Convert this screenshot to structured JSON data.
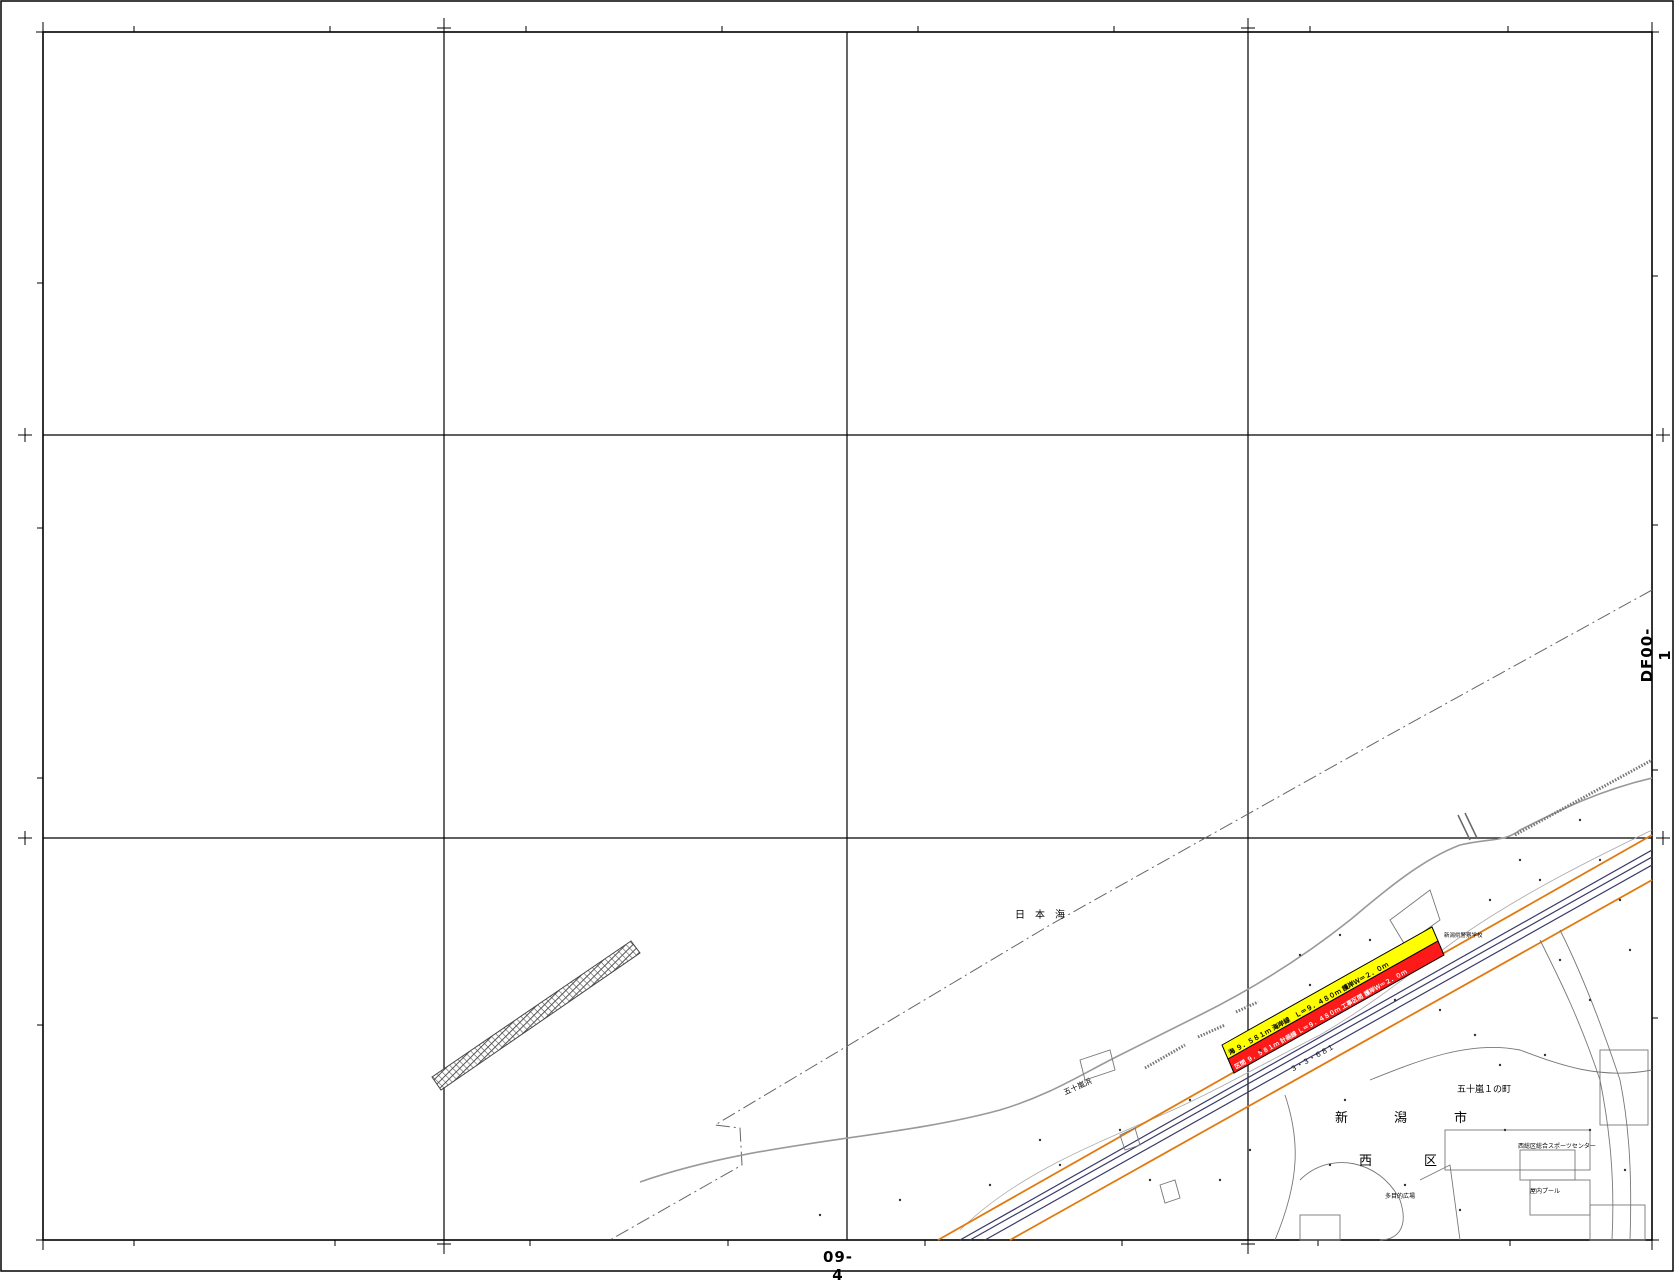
{
  "map": {
    "sheet_number": "DF00-1",
    "adjacent_sheet": "09-4",
    "sea_name": "日　本　海",
    "place_labels": {
      "igarashi_beach": "五十嵐浜",
      "igarashi_1": "五十嵐１の町",
      "niigata": "新",
      "gata": "潟",
      "shi": "市",
      "nishi": "西",
      "ku": "区",
      "sports_center": "西総区総合スポーツセンター",
      "pool": "屋内プール",
      "park": "多目的広場",
      "facility": "新潟県警察学校"
    },
    "project_labels": {
      "yellow_band": "海 ９．５８１ｍ 海岸線　Ｌ＝９．４８０ｍ 護岸Ｗ＝２．０ｍ",
      "red_band": "区間 ９．５８１ｍ 計画線 Ｌ＝９．４８０ｍ 工事区間 護岸Ｗ＝２．０ｍ",
      "road_code": "３・３・６８１"
    },
    "colors": {
      "frame": "#000000",
      "shoreline": "#999999",
      "orange_line": "#e07a10",
      "rail_line": "#3a3a6a",
      "yellow_band": "#ffff00",
      "red_band": "#ff1a1a",
      "dash_line": "#666666"
    }
  }
}
